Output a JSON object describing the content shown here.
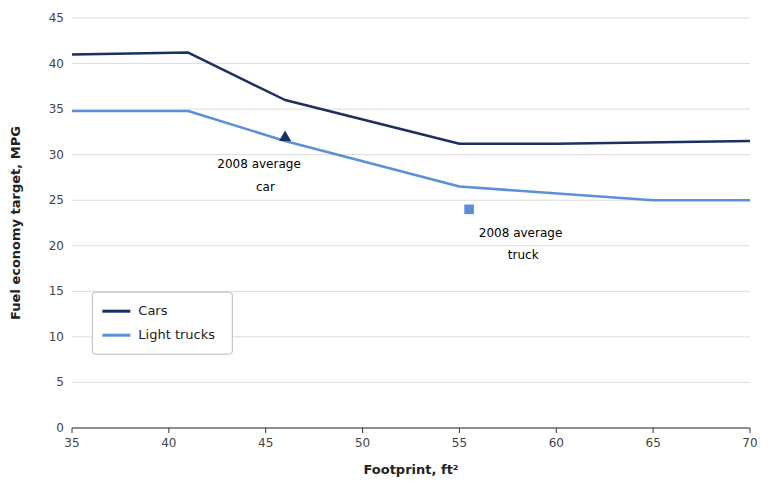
{
  "chart_data": {
    "type": "line",
    "x_label": "Footprint, ft²",
    "y_label": "Fuel economy target, MPG",
    "series": [
      {
        "name": "Cars",
        "color": "#1a3060",
        "x": [
          35,
          41,
          46,
          55,
          60,
          70
        ],
        "values": [
          41.0,
          41.2,
          36.0,
          31.2,
          31.2,
          31.5
        ]
      },
      {
        "name": "Light trucks",
        "color": "#5b8fd9",
        "x": [
          35,
          41,
          46,
          55,
          65,
          70
        ],
        "values": [
          34.8,
          34.8,
          31.5,
          26.5,
          25.0,
          25.0
        ]
      }
    ],
    "annotations": [
      {
        "x": 46.0,
        "y": 32.0,
        "text": [
          "2008 average",
          "car"
        ],
        "marker": "triangle",
        "color": "#1a3060"
      },
      {
        "x": 55.5,
        "y": 24.0,
        "text": [
          "2008 average",
          "truck"
        ],
        "marker": "square",
        "color": "#5b8fd9"
      }
    ],
    "xlim": [
      35,
      70
    ],
    "ylim": [
      0,
      45
    ],
    "xticks": [
      35,
      40,
      45,
      50,
      55,
      60,
      65,
      70
    ],
    "yticks": [
      0,
      5,
      10,
      15,
      20,
      25,
      30,
      35,
      40,
      45
    ],
    "grid": true,
    "legend": "lower left"
  }
}
